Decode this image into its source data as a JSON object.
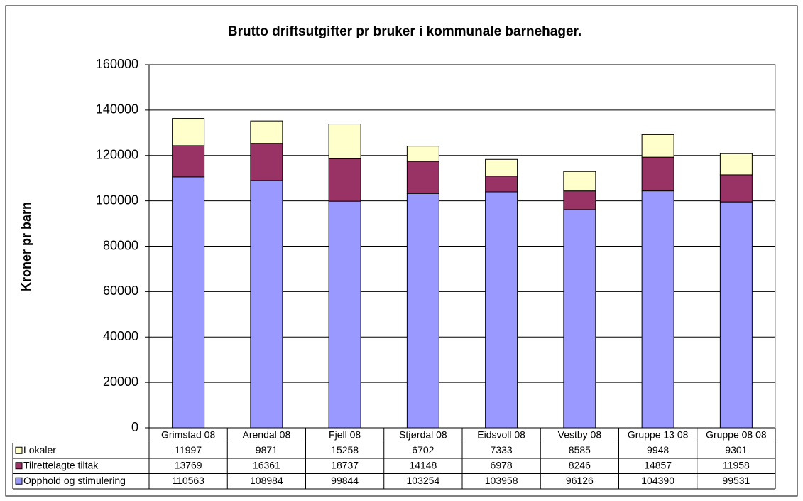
{
  "chart_data": {
    "type": "stacked_bar",
    "title": "Brutto driftsutgifter pr bruker i kommunale barnehager.",
    "y_label": "Kroner pr barn",
    "categories": [
      "Grimstad 08",
      "Arendal 08",
      "Fjell 08",
      "Stjørdal 08",
      "Eidsvoll 08",
      "Vestby 08",
      "Gruppe 13 08",
      "Gruppe 08 08"
    ],
    "series": [
      {
        "name": "Opphold og stimulering",
        "color": "#9999ff",
        "values": [
          110563,
          108984,
          99844,
          103254,
          103958,
          96126,
          104390,
          99531
        ]
      },
      {
        "name": "Tilrettelagte tiltak",
        "color": "#993366",
        "values": [
          13769,
          16361,
          18737,
          14148,
          6978,
          8246,
          14857,
          11958
        ]
      },
      {
        "name": "Lokaler",
        "color": "#ffffcc",
        "values": [
          11997,
          9871,
          15258,
          6702,
          7333,
          8585,
          9948,
          9301
        ]
      }
    ],
    "ylim": [
      0,
      160000
    ],
    "yticks": [
      0,
      20000,
      40000,
      60000,
      80000,
      100000,
      120000,
      140000,
      160000
    ],
    "grid": true
  }
}
